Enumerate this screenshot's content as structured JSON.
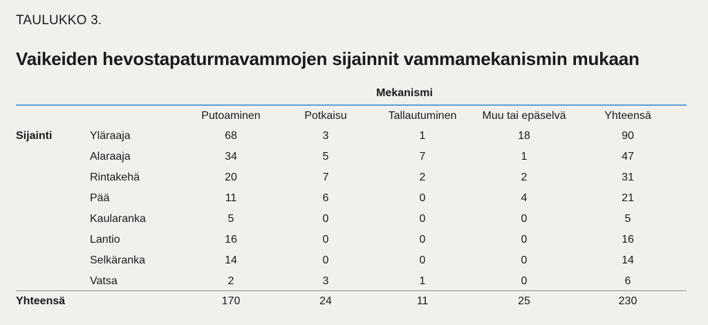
{
  "table_label": "TAULUKKO 3.",
  "title": "Vaikeiden hevostapaturmavammojen sijainnit vammamekanismin mukaan",
  "group_header": "Mekanismi",
  "row_group_label": "Sijainti",
  "columns": [
    "Putoaminen",
    "Potkaisu",
    "Tallautuminen",
    "Muu tai epäselvä",
    "Yhteensä"
  ],
  "rows": [
    {
      "label": "Yläraaja",
      "values": [
        "68",
        "3",
        "1",
        "18",
        "90"
      ]
    },
    {
      "label": "Alaraaja",
      "values": [
        "34",
        "5",
        "7",
        "1",
        "47"
      ]
    },
    {
      "label": "Rintakehä",
      "values": [
        "20",
        "7",
        "2",
        "2",
        "31"
      ]
    },
    {
      "label": "Pää",
      "values": [
        "11",
        "6",
        "0",
        "4",
        "21"
      ]
    },
    {
      "label": "Kaularanka",
      "values": [
        "5",
        "0",
        "0",
        "0",
        "5"
      ]
    },
    {
      "label": "Lantio",
      "values": [
        "16",
        "0",
        "0",
        "0",
        "16"
      ]
    },
    {
      "label": "Selkäranka",
      "values": [
        "14",
        "0",
        "0",
        "0",
        "14"
      ]
    },
    {
      "label": "Vatsa",
      "values": [
        "2",
        "3",
        "1",
        "0",
        "6"
      ]
    }
  ],
  "total": {
    "label": "Yhteensä",
    "values": [
      "170",
      "24",
      "11",
      "25",
      "230"
    ]
  },
  "colors": {
    "background": "#f1f0ec",
    "accent_rule": "#5b9fd6",
    "text": "#1a1a1a"
  }
}
